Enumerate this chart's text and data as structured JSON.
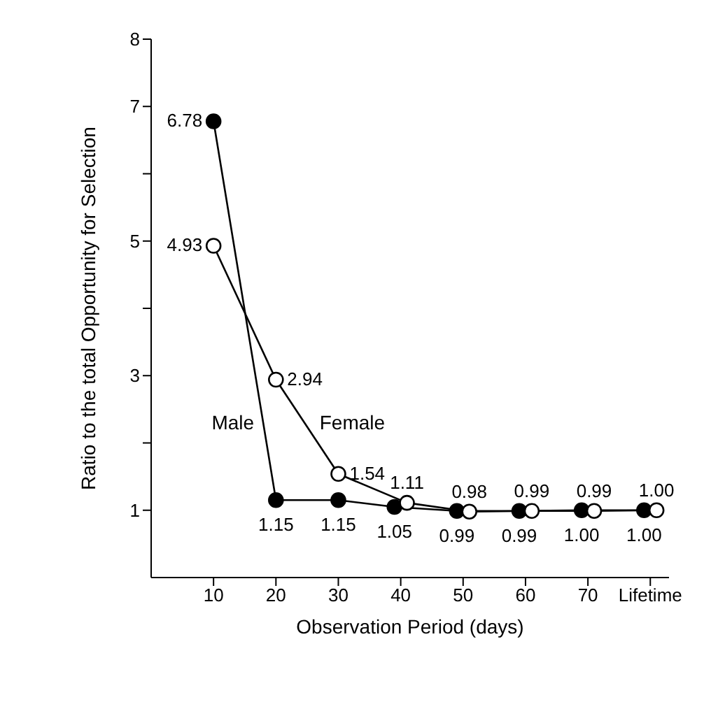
{
  "chart_data": {
    "type": "line",
    "xlabel": "Observation Period (days)",
    "ylabel": "Ratio to the total Opportunity for Selection",
    "xlim": [
      0,
      83
    ],
    "xticks": [
      10,
      20,
      30,
      40,
      50,
      60,
      70,
      {
        "value": 80,
        "label": "Lifetime"
      }
    ],
    "ylim": [
      0,
      8
    ],
    "yticks": [
      1,
      {
        "value": 2,
        "label": null
      },
      3,
      {
        "value": 4,
        "label": null
      },
      5,
      {
        "value": 6,
        "label": null
      },
      7,
      8
    ],
    "legend": false,
    "marker": "circle",
    "line_style": "solid",
    "series": [
      {
        "name": "Male",
        "color": "#000000",
        "x": [
          10,
          20,
          30,
          39,
          49,
          59,
          69,
          79
        ],
        "values": [
          6.78,
          1.15,
          1.15,
          1.05,
          0.99,
          0.99,
          1.0,
          1.0
        ],
        "value_labels": [
          "6.78",
          "1.15",
          "1.15",
          "1.05",
          "0.99",
          "0.99",
          "1.00",
          "1.00"
        ]
      },
      {
        "name": "Female",
        "color": "#000000",
        "x": [
          10,
          20,
          30,
          41,
          51,
          61,
          71,
          81
        ],
        "values": [
          4.93,
          2.94,
          1.54,
          1.11,
          0.98,
          0.99,
          0.99,
          1.0
        ],
        "value_labels": [
          "4.93",
          "2.94",
          "1.54",
          "1.11",
          "0.98",
          "0.99",
          "0.99",
          "1.00"
        ]
      }
    ]
  }
}
